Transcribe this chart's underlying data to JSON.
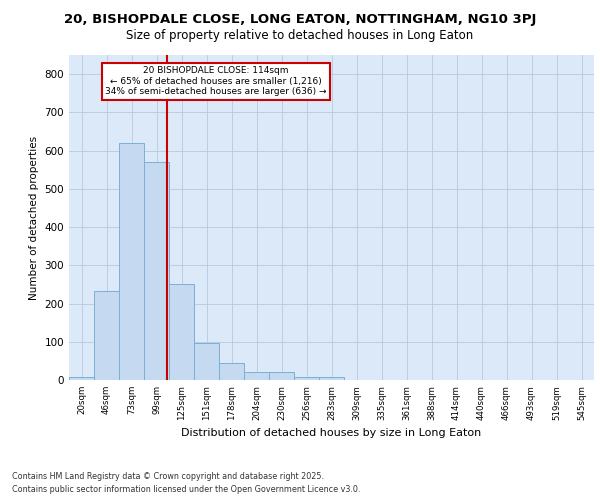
{
  "title_line1": "20, BISHOPDALE CLOSE, LONG EATON, NOTTINGHAM, NG10 3PJ",
  "title_line2": "Size of property relative to detached houses in Long Eaton",
  "xlabel": "Distribution of detached houses by size in Long Eaton",
  "ylabel": "Number of detached properties",
  "categories": [
    "20sqm",
    "46sqm",
    "73sqm",
    "99sqm",
    "125sqm",
    "151sqm",
    "178sqm",
    "204sqm",
    "230sqm",
    "256sqm",
    "283sqm",
    "309sqm",
    "335sqm",
    "361sqm",
    "388sqm",
    "414sqm",
    "440sqm",
    "466sqm",
    "493sqm",
    "519sqm",
    "545sqm"
  ],
  "values": [
    8,
    232,
    620,
    570,
    250,
    98,
    45,
    20,
    20,
    8,
    8,
    0,
    0,
    0,
    0,
    0,
    0,
    0,
    0,
    0,
    0
  ],
  "bar_color": "#c5d9f0",
  "bar_edge_color": "#7bafd4",
  "vline_x": 3.42,
  "vline_color": "#cc0000",
  "annotation_line1": "20 BISHOPDALE CLOSE: 114sqm",
  "annotation_line2": "← 65% of detached houses are smaller (1,216)",
  "annotation_line3": "34% of semi-detached houses are larger (636) →",
  "bg_color": "#dce9f8",
  "fig_bg": "#ffffff",
  "footer_line1": "Contains HM Land Registry data © Crown copyright and database right 2025.",
  "footer_line2": "Contains public sector information licensed under the Open Government Licence v3.0.",
  "ylim": [
    0,
    850
  ],
  "yticks": [
    0,
    100,
    200,
    300,
    400,
    500,
    600,
    700,
    800
  ]
}
